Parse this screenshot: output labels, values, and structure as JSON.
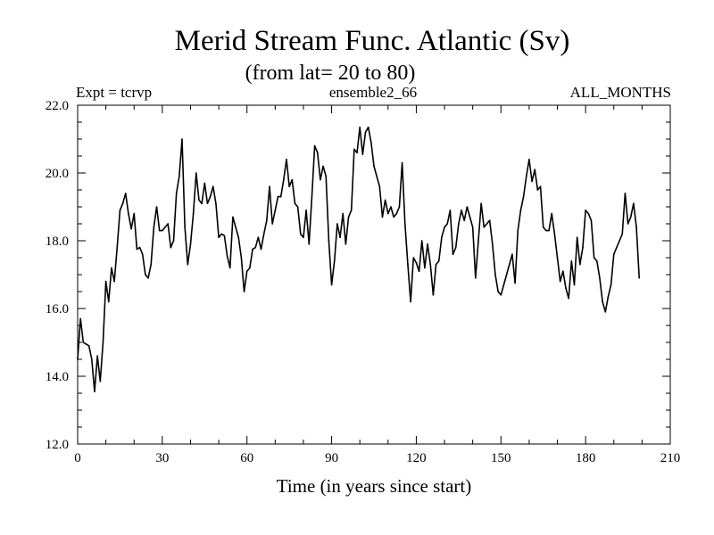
{
  "chart_data": {
    "type": "line",
    "title": "Merid Stream Func. Atlantic (Sv)",
    "subtitle": "(from lat= 20 to 80)",
    "header_left": "Expt = tcrvp",
    "header_center": "ensemble2_66",
    "header_right": "ALL_MONTHS",
    "xlabel": "Time (in years since start)",
    "ylabel": "",
    "xlim": [
      0,
      210
    ],
    "ylim": [
      12.0,
      22.0
    ],
    "xticks": [
      0,
      30,
      60,
      90,
      120,
      150,
      180,
      210
    ],
    "xtick_labels": [
      "0",
      "30",
      "60",
      "90",
      "120",
      "150",
      "180",
      "210"
    ],
    "yticks": [
      12.0,
      14.0,
      16.0,
      18.0,
      20.0,
      22.0
    ],
    "ytick_labels": [
      "12.0",
      "14.0",
      "16.0",
      "18.0",
      "20.0",
      "22.0"
    ],
    "grid": false,
    "series": [
      {
        "name": "Merid Stream Func. Atlantic",
        "x": [
          0,
          1,
          2,
          3,
          4,
          5,
          6,
          7,
          8,
          9,
          10,
          11,
          12,
          13,
          14,
          15,
          16,
          17,
          18,
          19,
          20,
          21,
          22,
          23,
          24,
          25,
          26,
          27,
          28,
          29,
          30,
          31,
          32,
          33,
          34,
          35,
          36,
          37,
          38,
          39,
          40,
          41,
          42,
          43,
          44,
          45,
          46,
          47,
          48,
          49,
          50,
          51,
          52,
          53,
          54,
          55,
          56,
          57,
          58,
          59,
          60,
          61,
          62,
          63,
          64,
          65,
          66,
          67,
          68,
          69,
          70,
          71,
          72,
          73,
          74,
          75,
          76,
          77,
          78,
          79,
          80,
          81,
          82,
          83,
          84,
          85,
          86,
          87,
          88,
          89,
          90,
          91,
          92,
          93,
          94,
          95,
          96,
          97,
          98,
          99,
          100,
          101,
          102,
          103,
          104,
          105,
          106,
          107,
          108,
          109,
          110,
          111,
          112,
          113,
          114,
          115,
          116,
          117,
          118,
          119,
          120,
          121,
          122,
          123,
          124,
          125,
          126,
          127,
          128,
          129,
          130,
          131,
          132,
          133,
          134,
          135,
          136,
          137,
          138,
          139,
          140,
          141,
          142,
          143,
          144,
          145,
          146,
          147,
          148,
          149,
          150,
          151,
          152,
          153,
          154,
          155,
          156,
          157,
          158,
          159,
          160,
          161,
          162,
          163,
          164,
          165,
          166,
          167,
          168,
          169,
          170,
          171,
          172,
          173,
          174,
          175,
          176,
          177,
          178,
          179,
          180,
          181,
          182,
          183,
          184,
          185,
          186,
          187,
          188,
          189,
          190,
          191,
          192,
          193,
          194,
          195,
          196,
          197,
          198,
          199
        ],
        "values": [
          14.5,
          15.7,
          15.0,
          14.95,
          14.9,
          14.5,
          13.55,
          14.6,
          13.85,
          15.0,
          16.8,
          16.2,
          17.2,
          16.8,
          17.8,
          18.9,
          19.1,
          19.4,
          18.8,
          18.35,
          18.8,
          17.75,
          17.8,
          17.6,
          17.0,
          16.9,
          17.3,
          18.4,
          19.0,
          18.3,
          18.3,
          18.4,
          18.5,
          17.8,
          18.0,
          19.4,
          19.9,
          21.0,
          18.4,
          17.3,
          17.9,
          18.8,
          20.0,
          19.2,
          19.1,
          19.7,
          19.1,
          19.3,
          19.6,
          19.1,
          18.1,
          18.2,
          18.15,
          17.55,
          17.2,
          18.7,
          18.4,
          18.1,
          17.5,
          16.5,
          17.1,
          17.2,
          17.75,
          17.8,
          18.1,
          17.75,
          18.2,
          18.6,
          19.6,
          18.5,
          18.9,
          19.3,
          19.3,
          19.8,
          20.4,
          19.6,
          19.8,
          19.1,
          19.0,
          18.2,
          18.1,
          18.9,
          17.9,
          19.3,
          20.8,
          20.6,
          19.8,
          20.2,
          19.9,
          18.0,
          16.7,
          17.4,
          18.5,
          18.1,
          18.8,
          17.9,
          18.7,
          18.9,
          20.7,
          20.6,
          21.35,
          20.55,
          21.2,
          21.35,
          20.9,
          20.2,
          19.9,
          19.6,
          18.7,
          19.2,
          18.8,
          19.0,
          18.7,
          18.8,
          19.0,
          20.3,
          18.5,
          17.3,
          16.2,
          17.5,
          17.35,
          17.1,
          18.0,
          17.2,
          17.9,
          17.3,
          16.4,
          17.3,
          17.4,
          18.1,
          18.4,
          18.5,
          18.9,
          17.6,
          17.8,
          18.5,
          18.9,
          18.6,
          19.0,
          18.7,
          18.4,
          16.9,
          18.0,
          19.1,
          18.4,
          18.5,
          18.6,
          17.9,
          17.0,
          16.5,
          16.4,
          16.7,
          17.0,
          17.3,
          17.6,
          16.75,
          18.3,
          18.9,
          19.3,
          19.9,
          20.4,
          19.75,
          20.1,
          19.5,
          19.6,
          18.4,
          18.3,
          18.3,
          18.8,
          18.2,
          17.5,
          16.8,
          17.1,
          16.6,
          16.3,
          17.4,
          16.7,
          18.1,
          17.3,
          17.8,
          18.9,
          18.8,
          18.6,
          17.5,
          17.4,
          16.9,
          16.2,
          15.9,
          16.35,
          16.7,
          17.6,
          17.8,
          18.0,
          18.2,
          19.4,
          18.5,
          18.7,
          19.1,
          18.4,
          16.9
        ]
      }
    ]
  }
}
